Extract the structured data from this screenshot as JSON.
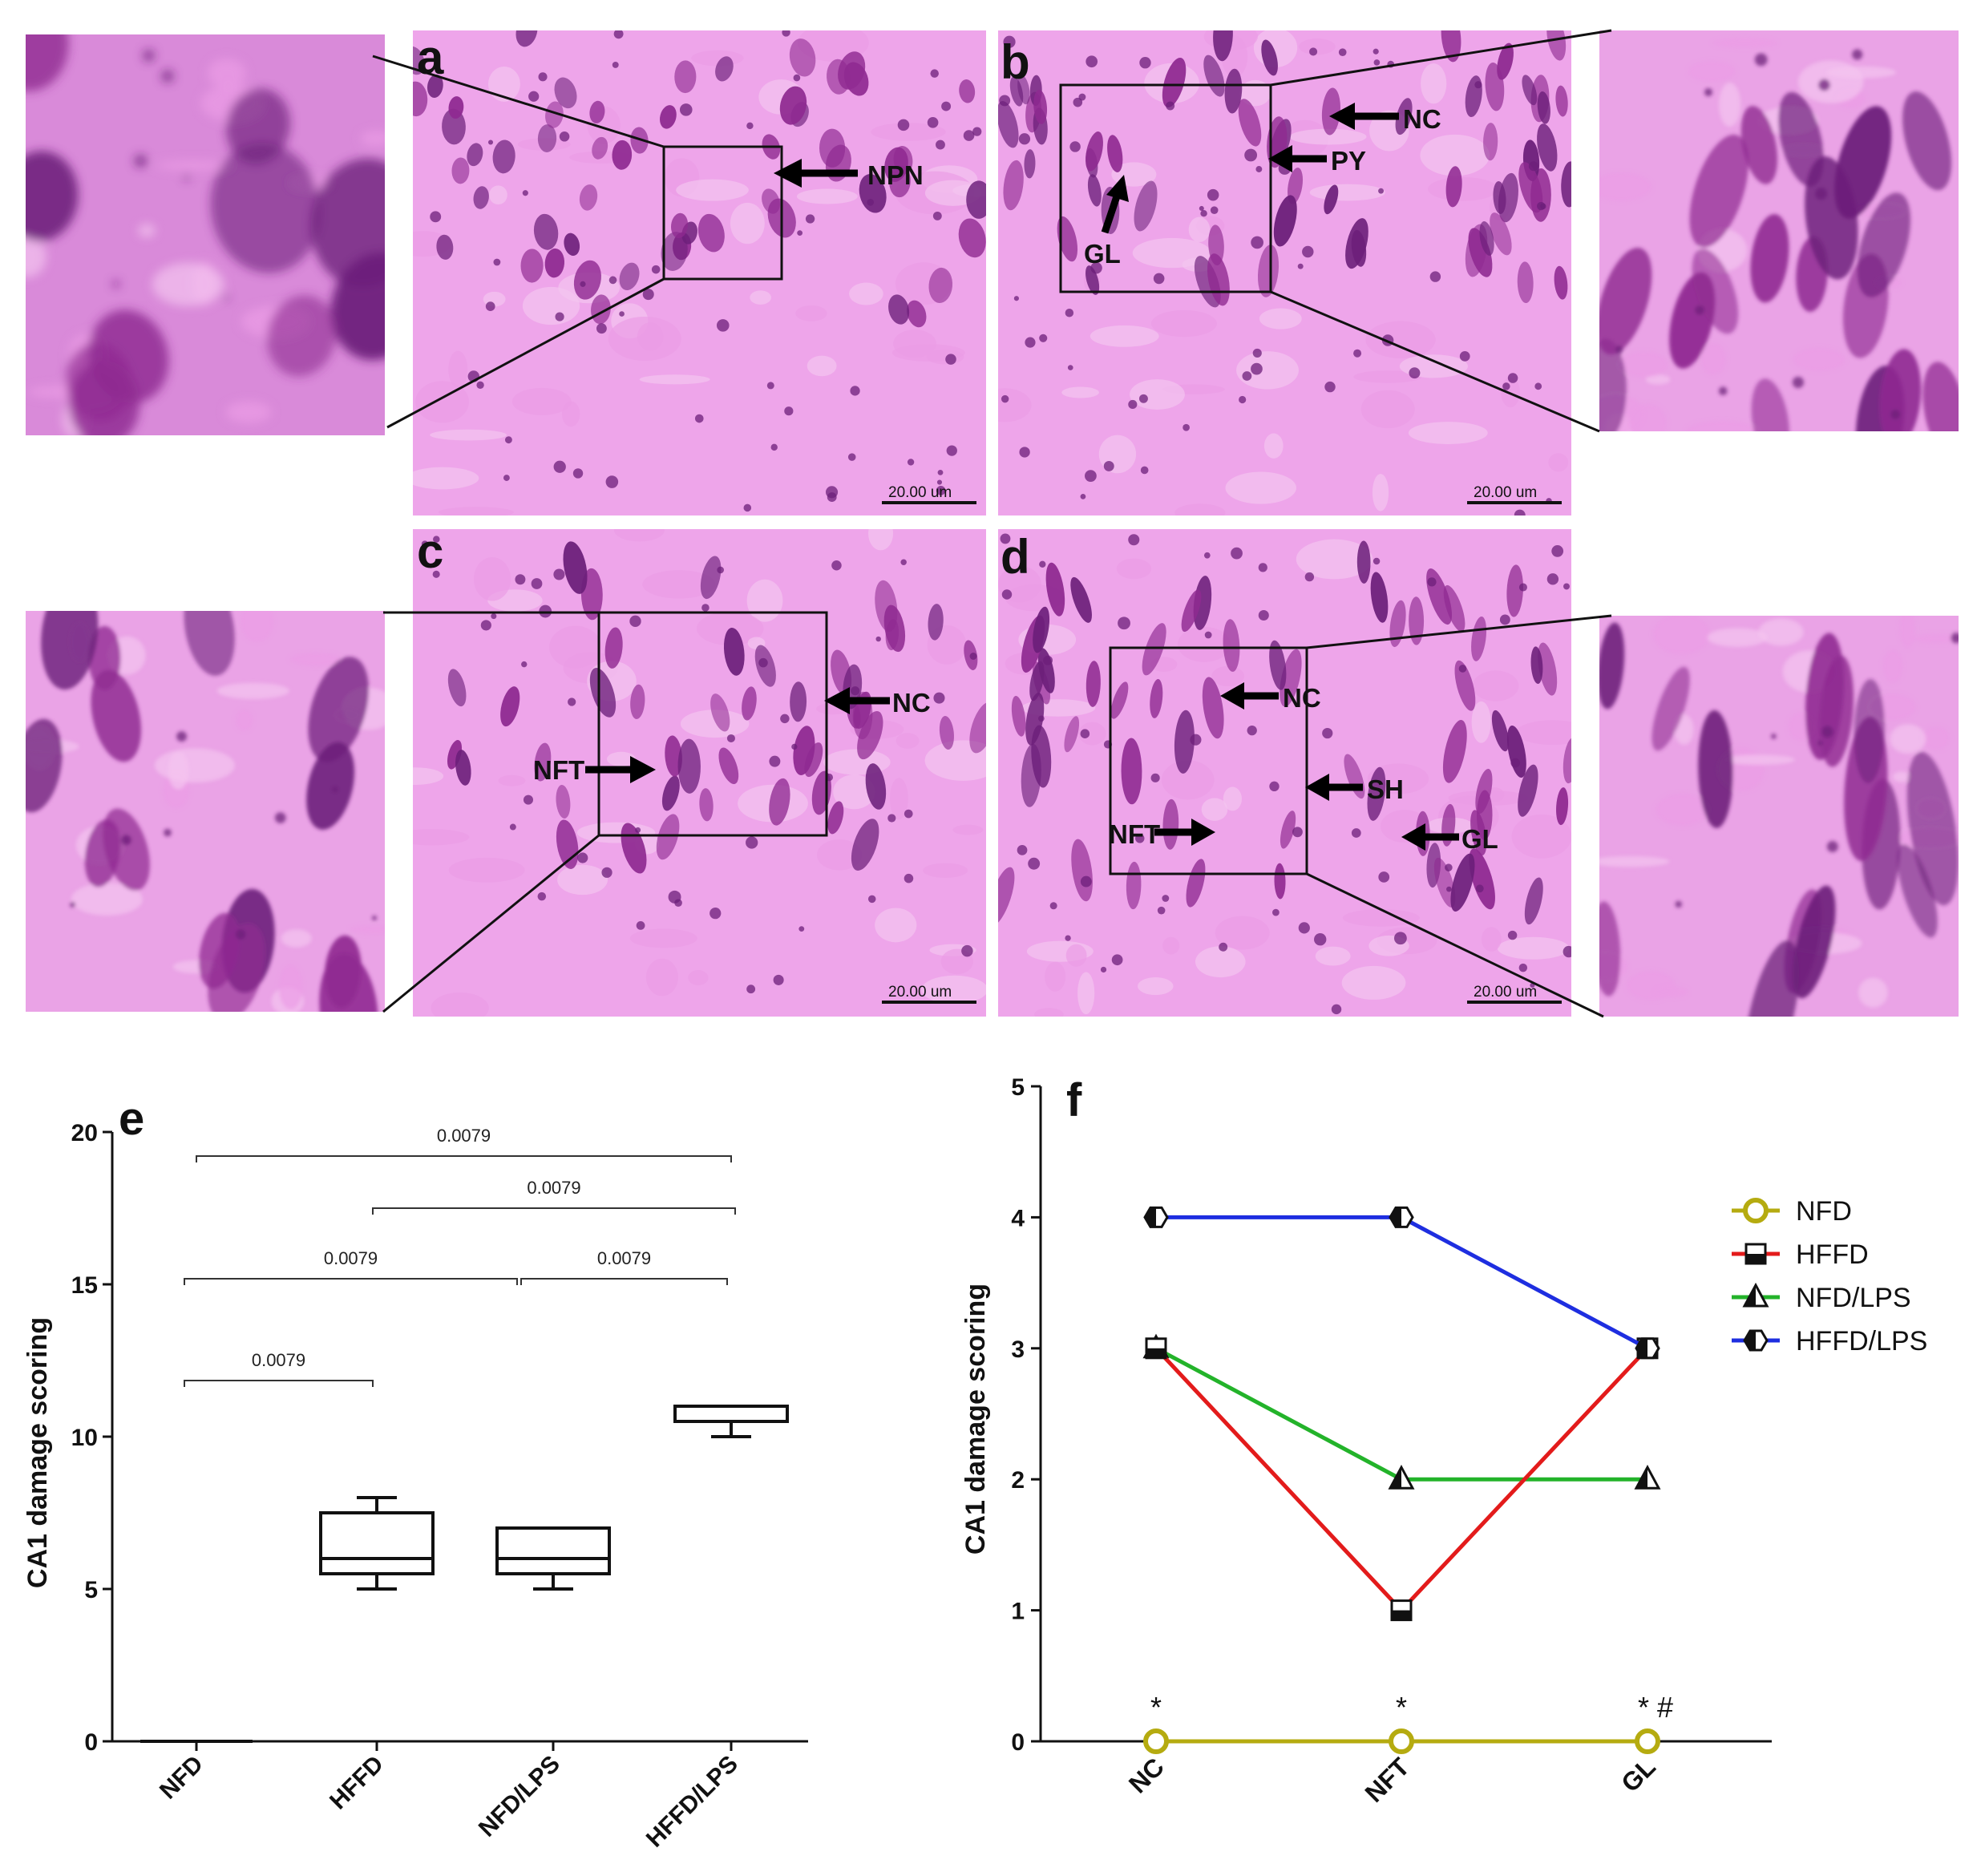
{
  "panels": {
    "a": {
      "letter": "a",
      "labels": [
        "NPN"
      ],
      "scale_bar": "20.00 um"
    },
    "b": {
      "letter": "b",
      "labels": [
        "NC",
        "PY",
        "GL"
      ],
      "scale_bar": "20.00 um"
    },
    "c": {
      "letter": "c",
      "labels": [
        "NC",
        "NFT"
      ],
      "scale_bar": "20.00 um"
    },
    "d": {
      "letter": "d",
      "labels": [
        "NC",
        "SH",
        "NFT",
        "GL"
      ],
      "scale_bar": "20.00 um"
    }
  },
  "colors": {
    "tissue": "#eb9ce6",
    "tissue_light": "#f3c4ef",
    "nucleus": "#8f2a91",
    "nucleus_dark": "#6c1f7a",
    "NFD": "#b5ab10",
    "HFFD": "#e31b1b",
    "NFD/LPS": "#23b32a",
    "HFFD/LPS": "#1e2ee0"
  },
  "chart_data": [
    {
      "letter": "e",
      "type": "box",
      "ylabel": "CA1 damage scoring",
      "ylim": [
        0,
        20
      ],
      "yticks": [
        "0",
        "5",
        "10",
        "15",
        "20"
      ],
      "categories": [
        "NFD",
        "HFFD",
        "NFD/LPS",
        "HFFD/LPS"
      ],
      "boxes": [
        {
          "name": "NFD",
          "min": 0,
          "q1": 0,
          "median": 0,
          "q3": 0,
          "max": 0
        },
        {
          "name": "HFFD",
          "min": 5,
          "q1": 5.5,
          "median": 6,
          "q3": 7.5,
          "max": 8
        },
        {
          "name": "NFD/LPS",
          "min": 5,
          "q1": 5.5,
          "median": 6,
          "q3": 7,
          "max": 7
        },
        {
          "name": "HFFD/LPS",
          "min": 10,
          "q1": 10.5,
          "median": 10.5,
          "q3": 11,
          "max": 11
        }
      ],
      "comparisons": [
        {
          "from": "NFD",
          "to": "HFFD/LPS",
          "label": "0.0079"
        },
        {
          "from": "HFFD",
          "to": "HFFD/LPS",
          "label": "0.0079"
        },
        {
          "from": "NFD",
          "to": "NFD/LPS",
          "label": "0.0079"
        },
        {
          "from": "NFD/LPS",
          "to": "HFFD/LPS",
          "label": "0.0079"
        },
        {
          "from": "NFD",
          "to": "HFFD",
          "label": "0.0079"
        }
      ]
    },
    {
      "letter": "f",
      "type": "line",
      "ylabel": "CA1 damage scoring",
      "ylim": [
        0,
        5
      ],
      "yticks": [
        "0",
        "1",
        "2",
        "3",
        "4",
        "5"
      ],
      "categories": [
        "NC",
        "NFT",
        "GL"
      ],
      "series": [
        {
          "name": "NFD",
          "values": [
            0,
            0,
            0
          ]
        },
        {
          "name": "HFFD",
          "values": [
            3,
            1,
            3
          ]
        },
        {
          "name": "NFD/LPS",
          "values": [
            3,
            2,
            2
          ]
        },
        {
          "name": "HFFD/LPS",
          "values": [
            4,
            4,
            3
          ]
        }
      ],
      "annotations": [
        "*",
        "*",
        "* #"
      ],
      "legend": "right"
    }
  ]
}
